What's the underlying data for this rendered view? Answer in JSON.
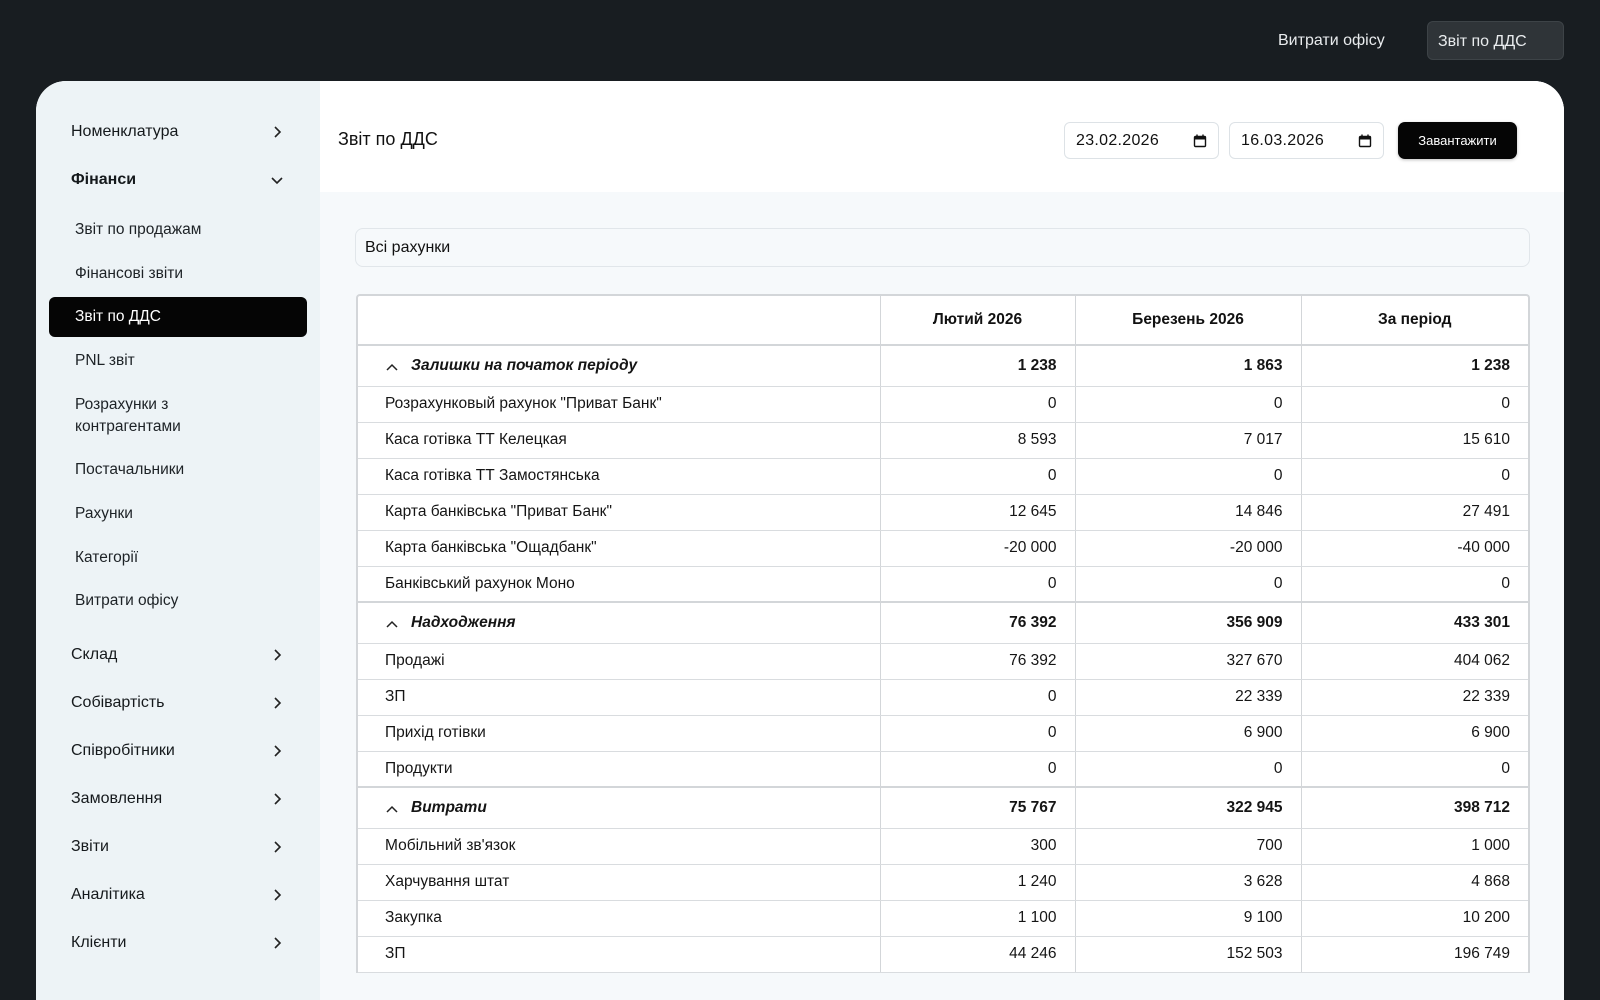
{
  "topnav": {
    "office_expenses": "Витрати офісу",
    "dds_report": "Звіт по ДДС"
  },
  "sidebar": {
    "groups_top": [
      {
        "label": "Номенклатура",
        "state": "collapsed"
      },
      {
        "label": "Фінанси",
        "state": "expanded"
      }
    ],
    "finance_items": [
      {
        "label": "Звіт по продажам"
      },
      {
        "label": "Фінансові звіти"
      },
      {
        "label": "Звіт по ДДС",
        "active": true
      },
      {
        "label": "PNL звіт"
      },
      {
        "label": "Розрахунки з контрагентами"
      },
      {
        "label": "Постачальники"
      },
      {
        "label": "Рахунки"
      },
      {
        "label": "Категорії"
      },
      {
        "label": "Витрати офісу"
      }
    ],
    "groups_bottom": [
      {
        "label": "Склад"
      },
      {
        "label": "Собівартість"
      },
      {
        "label": "Співробітники"
      },
      {
        "label": "Замовлення"
      },
      {
        "label": "Звіти"
      },
      {
        "label": "Аналітика"
      },
      {
        "label": "Клієнти"
      }
    ]
  },
  "header": {
    "title": "Звіт по ДДС",
    "date_from": "23.02.2026",
    "date_to": "16.03.2026",
    "load_button": "Завантажити"
  },
  "filter": {
    "account": "Всі рахунки"
  },
  "table": {
    "columns": [
      "",
      "Лютий 2026",
      "Березень 2026",
      "За період"
    ],
    "rows": [
      {
        "type": "group",
        "label": "Залишки на початок періоду",
        "values": [
          "1 238",
          "1 863",
          "1 238"
        ]
      },
      {
        "type": "row",
        "label": "Розрахунковый рахунок \"Приват Банк\"",
        "values": [
          "0",
          "0",
          "0"
        ]
      },
      {
        "type": "row",
        "label": "Каса готівка ТТ Келецкая",
        "values": [
          "8 593",
          "7 017",
          "15 610"
        ]
      },
      {
        "type": "row",
        "label": "Каса готівка ТТ Замостянська",
        "values": [
          "0",
          "0",
          "0"
        ]
      },
      {
        "type": "row",
        "label": "Карта банківська \"Приват Банк\"",
        "values": [
          "12 645",
          "14 846",
          "27 491"
        ]
      },
      {
        "type": "row",
        "label": "Карта банківська \"Ощадбанк\"",
        "values": [
          "-20 000",
          "-20 000",
          "-40 000"
        ]
      },
      {
        "type": "row",
        "label": "Банківський рахунок Моно",
        "values": [
          "0",
          "0",
          "0"
        ]
      },
      {
        "type": "group",
        "label": "Надходження",
        "values": [
          "76 392",
          "356 909",
          "433 301"
        ]
      },
      {
        "type": "row",
        "label": "Продажі",
        "values": [
          "76 392",
          "327 670",
          "404 062"
        ]
      },
      {
        "type": "row",
        "label": "ЗП",
        "values": [
          "0",
          "22 339",
          "22 339"
        ]
      },
      {
        "type": "row",
        "label": "Прихід готівки",
        "values": [
          "0",
          "6 900",
          "6 900"
        ]
      },
      {
        "type": "row",
        "label": "Продукти",
        "values": [
          "0",
          "0",
          "0"
        ]
      },
      {
        "type": "group",
        "label": "Витрати",
        "values": [
          "75 767",
          "322 945",
          "398 712"
        ]
      },
      {
        "type": "row",
        "label": "Мобільний зв'язок",
        "values": [
          "300",
          "700",
          "1 000"
        ]
      },
      {
        "type": "row",
        "label": "Харчування штат",
        "values": [
          "1 240",
          "3 628",
          "4 868"
        ]
      },
      {
        "type": "row",
        "label": "Закупка",
        "values": [
          "1 100",
          "9 100",
          "10 200"
        ]
      },
      {
        "type": "row",
        "label": "ЗП",
        "values": [
          "44 246",
          "152 503",
          "196 749"
        ]
      }
    ]
  },
  "icons": {
    "chevron_right": "chevron-right-icon",
    "chevron_down": "chevron-down-icon",
    "chevron_up": "chevron-up-icon",
    "calendar": "calendar-icon"
  }
}
